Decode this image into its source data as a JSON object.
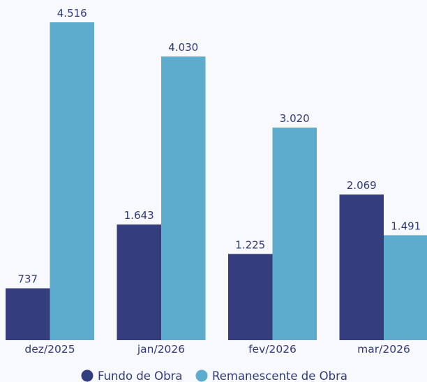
{
  "chart_data": {
    "type": "bar",
    "categories": [
      "dez/2025",
      "jan/2026",
      "fev/2026",
      "mar/2026"
    ],
    "series": [
      {
        "name": "Fundo de Obra",
        "values": [
          737,
          1643,
          1225,
          2069
        ],
        "labels": [
          "737",
          "1.643",
          "1.225",
          "2.069"
        ],
        "color": "#343d7e"
      },
      {
        "name": "Remanescente de Obra",
        "values": [
          4516,
          4030,
          3020,
          1491
        ],
        "labels": [
          "4.516",
          "4.030",
          "3.020",
          "1.491"
        ],
        "color": "#5dabcd"
      }
    ],
    "ylim": [
      0,
      4516
    ],
    "grid": false,
    "legend_position": "bottom-center"
  }
}
